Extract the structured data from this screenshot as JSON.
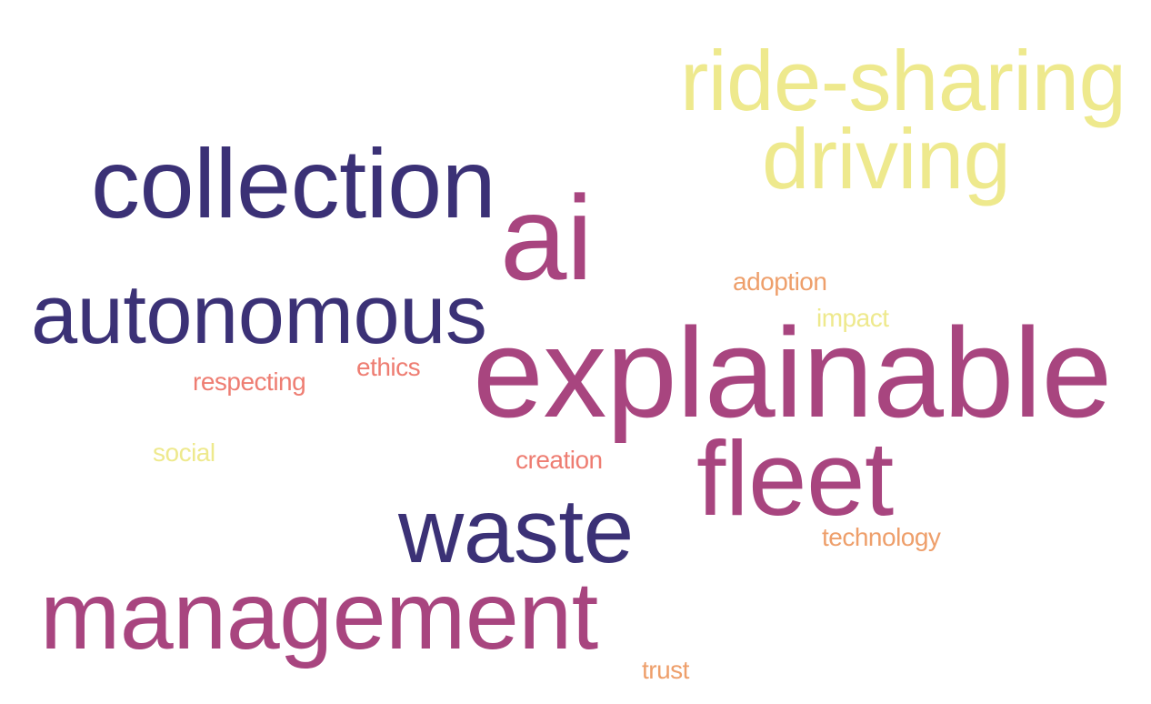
{
  "palette": {
    "dark": "#3b3176",
    "magenta": "#a8457f",
    "salmon": "#ee7d72",
    "orange": "#ee9f6b",
    "yellow": "#eee98d"
  },
  "words": [
    {
      "id": "ride-sharing",
      "text": "ride-sharing",
      "color": "#eee98d"
    },
    {
      "id": "driving",
      "text": "driving",
      "color": "#eee98d"
    },
    {
      "id": "collection",
      "text": "collection",
      "color": "#3b3176"
    },
    {
      "id": "ai",
      "text": "ai",
      "color": "#a8457f"
    },
    {
      "id": "adoption",
      "text": "adoption",
      "color": "#ee9f6b"
    },
    {
      "id": "autonomous",
      "text": "autonomous",
      "color": "#3b3176"
    },
    {
      "id": "impact",
      "text": "impact",
      "color": "#eee98d"
    },
    {
      "id": "explainable",
      "text": "explainable",
      "color": "#a8457f"
    },
    {
      "id": "ethics",
      "text": "ethics",
      "color": "#ee7d72"
    },
    {
      "id": "respecting",
      "text": "respecting",
      "color": "#ee7d72"
    },
    {
      "id": "social",
      "text": "social",
      "color": "#eee98d"
    },
    {
      "id": "creation",
      "text": "creation",
      "color": "#ee7d72"
    },
    {
      "id": "fleet",
      "text": "fleet",
      "color": "#a8457f"
    },
    {
      "id": "waste",
      "text": "waste",
      "color": "#3b3176"
    },
    {
      "id": "technology",
      "text": "technology",
      "color": "#ee9f6b"
    },
    {
      "id": "management",
      "text": "management",
      "color": "#a8457f"
    },
    {
      "id": "trust",
      "text": "trust",
      "color": "#ee9f6b"
    }
  ]
}
